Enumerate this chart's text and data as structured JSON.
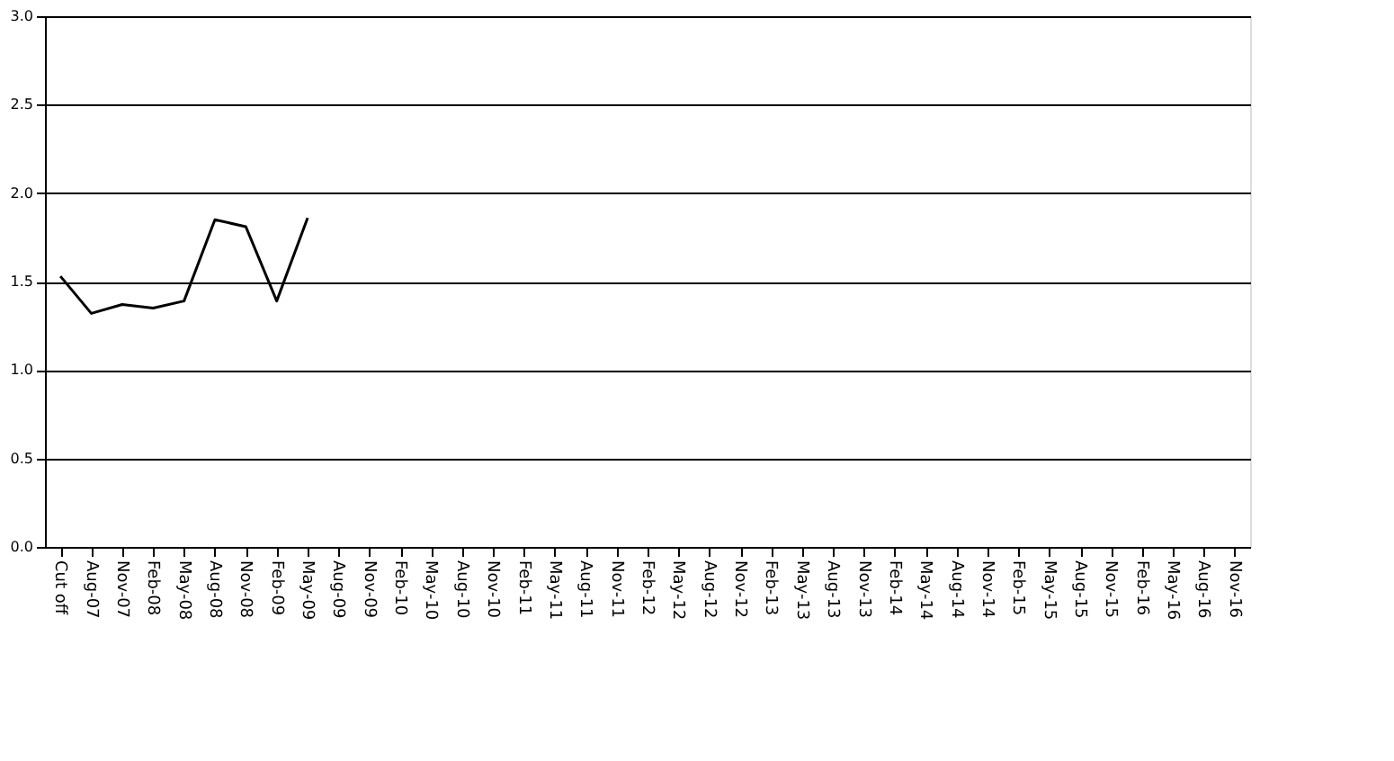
{
  "chart_data": {
    "type": "line",
    "categories": [
      "Cut off",
      "Aug-07",
      "Nov-07",
      "Feb-08",
      "May-08",
      "Aug-08",
      "Nov-08",
      "Feb-09",
      "May-09",
      "Aug-09",
      "Nov-09",
      "Feb-10",
      "May-10",
      "Aug-10",
      "Nov-10",
      "Feb-11",
      "May-11",
      "Aug-11",
      "Nov-11",
      "Feb-12",
      "May-12",
      "Aug-12",
      "Nov-12",
      "Feb-13",
      "May-13",
      "Aug-13",
      "Nov-13",
      "Feb-14",
      "May-14",
      "Aug-14",
      "Nov-14",
      "Feb-15",
      "May-15",
      "Aug-15",
      "Nov-15",
      "Feb-16",
      "May-16",
      "Aug-16",
      "Nov-16"
    ],
    "series": [
      {
        "color": "#000000",
        "values": [
          1.53,
          1.32,
          1.37,
          1.35,
          1.39,
          1.85,
          1.81,
          1.39,
          1.86,
          null,
          null,
          null,
          null,
          null,
          null,
          null,
          null,
          null,
          null,
          null,
          null,
          null,
          null,
          null,
          null,
          null,
          null,
          null,
          null,
          null,
          null,
          null,
          null,
          null,
          null,
          null,
          null,
          null,
          null
        ]
      }
    ],
    "ylim": [
      0,
      3
    ],
    "yticks": [
      {
        "value": 0,
        "label": "0.0"
      },
      {
        "value": 0.5,
        "label": "0.5"
      },
      {
        "value": 1,
        "label": "1.0"
      },
      {
        "value": 1.5,
        "label": "1.5"
      },
      {
        "value": 2,
        "label": "2.0"
      },
      {
        "value": 2.5,
        "label": "2.5"
      },
      {
        "value": 3,
        "label": "3.0"
      }
    ],
    "grid": "y",
    "marker": "none",
    "line_style": "solid"
  }
}
